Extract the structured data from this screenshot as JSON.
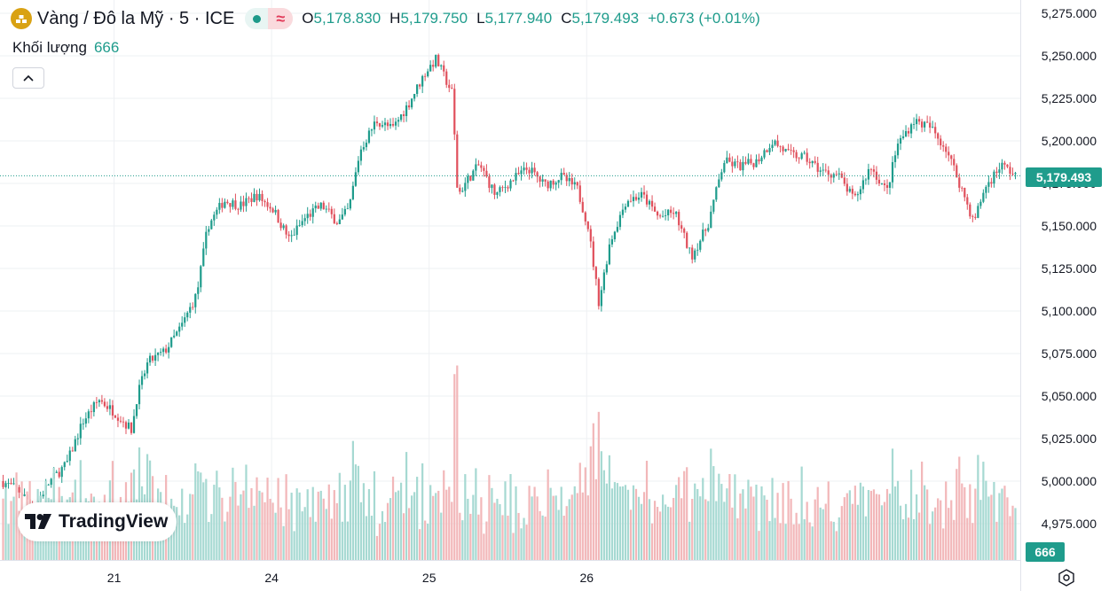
{
  "header": {
    "title": "Vàng / Đô la Mỹ · 5 · ICE",
    "ohlc": [
      {
        "key": "O",
        "value": "5,178.830"
      },
      {
        "key": "H",
        "value": "5,179.750"
      },
      {
        "key": "L",
        "value": "5,177.940"
      },
      {
        "key": "C",
        "value": "5,179.493"
      }
    ],
    "change": "+0.673 (+0.01%)"
  },
  "volume": {
    "label": "Khối lượng",
    "value": "666"
  },
  "badge": {
    "text": "TradingView"
  },
  "colors": {
    "up": "#1f9c8c",
    "down": "#e0505c",
    "up_vol": "#a6d9d2",
    "down_vol": "#f2b7b9",
    "grid": "#eef0f3",
    "logo": "#d9a213"
  },
  "icons": {
    "logo": "gold-bars-icon",
    "collapse": "chevron-up-icon",
    "settings": "gear-icon",
    "badge": "tradingview-logo-icon"
  },
  "chart_data": {
    "type": "candlestick",
    "title": "Vàng / Đô la Mỹ · 5 · ICE",
    "current_price": "5,179.493",
    "current_volume": "666",
    "y_ticks": [
      "5,275.000",
      "5,250.000",
      "5,225.000",
      "5,200.000",
      "5,175.000",
      "5,150.000",
      "5,125.000",
      "5,100.000",
      "5,075.000",
      "5,050.000",
      "5,025.000",
      "5,000.000",
      "4,975.000"
    ],
    "y_values": [
      5275,
      5250,
      5225,
      5200,
      5175,
      5150,
      5125,
      5100,
      5075,
      5050,
      5025,
      5000,
      4975
    ],
    "ylim": [
      4952,
      5282
    ],
    "x_ticks": [
      "21",
      "24",
      "25",
      "26"
    ],
    "x_tick_positions": [
      0.21,
      0.5,
      0.79,
      1.08
    ],
    "price_path": [
      [
        0.0,
        5000
      ],
      [
        0.03,
        4995
      ],
      [
        0.06,
        4985
      ],
      [
        0.09,
        5000
      ],
      [
        0.12,
        5010
      ],
      [
        0.15,
        5035
      ],
      [
        0.18,
        5048
      ],
      [
        0.21,
        5040
      ],
      [
        0.24,
        5030
      ],
      [
        0.25,
        5050
      ],
      [
        0.27,
        5070
      ],
      [
        0.3,
        5076
      ],
      [
        0.33,
        5090
      ],
      [
        0.36,
        5110
      ],
      [
        0.38,
        5150
      ],
      [
        0.41,
        5165
      ],
      [
        0.44,
        5162
      ],
      [
        0.47,
        5168
      ],
      [
        0.5,
        5160
      ],
      [
        0.53,
        5142
      ],
      [
        0.56,
        5155
      ],
      [
        0.59,
        5162
      ],
      [
        0.62,
        5152
      ],
      [
        0.64,
        5160
      ],
      [
        0.66,
        5194
      ],
      [
        0.69,
        5212
      ],
      [
        0.72,
        5207
      ],
      [
        0.75,
        5222
      ],
      [
        0.78,
        5240
      ],
      [
        0.8,
        5248
      ],
      [
        0.83,
        5228
      ],
      [
        0.84,
        5168
      ],
      [
        0.86,
        5178
      ],
      [
        0.88,
        5186
      ],
      [
        0.91,
        5168
      ],
      [
        0.94,
        5177
      ],
      [
        0.97,
        5184
      ],
      [
        1.0,
        5174
      ],
      [
        1.03,
        5179
      ],
      [
        1.06,
        5172
      ],
      [
        1.08,
        5150
      ],
      [
        1.1,
        5105
      ],
      [
        1.12,
        5140
      ],
      [
        1.15,
        5165
      ],
      [
        1.18,
        5168
      ],
      [
        1.21,
        5155
      ],
      [
        1.24,
        5158
      ],
      [
        1.27,
        5132
      ],
      [
        1.3,
        5150
      ],
      [
        1.33,
        5188
      ],
      [
        1.36,
        5185
      ],
      [
        1.39,
        5188
      ],
      [
        1.42,
        5200
      ],
      [
        1.45,
        5192
      ],
      [
        1.48,
        5190
      ],
      [
        1.51,
        5182
      ],
      [
        1.54,
        5180
      ],
      [
        1.57,
        5165
      ],
      [
        1.6,
        5185
      ],
      [
        1.63,
        5170
      ],
      [
        1.65,
        5198
      ],
      [
        1.68,
        5212
      ],
      [
        1.71,
        5208
      ],
      [
        1.74,
        5195
      ],
      [
        1.77,
        5170
      ],
      [
        1.79,
        5152
      ],
      [
        1.81,
        5172
      ],
      [
        1.84,
        5186
      ],
      [
        1.87,
        5179.493
      ]
    ]
  }
}
